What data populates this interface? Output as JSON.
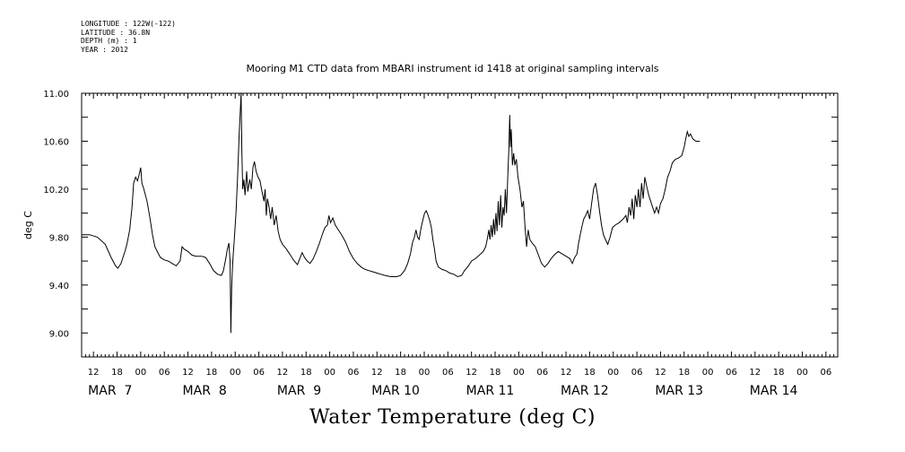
{
  "meta": {
    "longitude": "LONGITUDE : 122W(-122)",
    "latitude": "LATITUDE : 36.8N",
    "depth": "DEPTH (m) : 1",
    "year": "YEAR : 2012"
  },
  "chart_data": {
    "type": "line",
    "title": "Mooring M1 CTD data from MBARI instrument id 1418 at original sampling intervals",
    "main_title": "Water Temperature (deg C)",
    "ylabel": "deg C",
    "xlabel": "",
    "ylim": [
      8.8,
      11.0
    ],
    "y_ticks": [
      9.0,
      9.4,
      9.8,
      10.2,
      10.6,
      11.0
    ],
    "y_tick_labels": [
      "9.00",
      "9.40",
      "9.80",
      "10.20",
      "10.60",
      "11.00"
    ],
    "x_unit": "hours since MAR 7 00:00 (2012)",
    "xlim": [
      -15,
      177
    ],
    "hour_tick_labels": [
      {
        "x": -12,
        "label": "12"
      },
      {
        "x": -6,
        "label": "18"
      },
      {
        "x": 0,
        "label": "00"
      },
      {
        "x": 6,
        "label": "06"
      },
      {
        "x": 12,
        "label": "12"
      },
      {
        "x": 18,
        "label": "18"
      },
      {
        "x": 24,
        "label": "00"
      },
      {
        "x": 30,
        "label": "06"
      },
      {
        "x": 36,
        "label": "12"
      },
      {
        "x": 42,
        "label": "18"
      },
      {
        "x": 48,
        "label": "00"
      },
      {
        "x": 54,
        "label": "06"
      },
      {
        "x": 60,
        "label": "12"
      },
      {
        "x": 66,
        "label": "18"
      },
      {
        "x": 72,
        "label": "00"
      },
      {
        "x": 78,
        "label": "06"
      },
      {
        "x": 84,
        "label": "12"
      },
      {
        "x": 90,
        "label": "18"
      },
      {
        "x": 96,
        "label": "00"
      },
      {
        "x": 102,
        "label": "06"
      },
      {
        "x": 108,
        "label": "12"
      },
      {
        "x": 114,
        "label": "18"
      },
      {
        "x": 120,
        "label": "00"
      },
      {
        "x": 126,
        "label": "06"
      },
      {
        "x": 132,
        "label": "12"
      },
      {
        "x": 138,
        "label": "18"
      },
      {
        "x": 144,
        "label": "00"
      },
      {
        "x": 150,
        "label": "06"
      },
      {
        "x": 156,
        "label": "12"
      },
      {
        "x": 162,
        "label": "18"
      },
      {
        "x": 168,
        "label": "00"
      },
      {
        "x": 174,
        "label": "06"
      }
    ],
    "date_labels": [
      {
        "x": -12,
        "label": "MAR  7"
      },
      {
        "x": 12,
        "label": "MAR  8"
      },
      {
        "x": 36,
        "label": "MAR  9"
      },
      {
        "x": 60,
        "label": "MAR 10"
      },
      {
        "x": 84,
        "label": "MAR 11"
      },
      {
        "x": 108,
        "label": "MAR 12"
      },
      {
        "x": 132,
        "label": "MAR 13"
      },
      {
        "x": 156,
        "label": "MAR 14"
      }
    ],
    "series": [
      {
        "color": "#000000",
        "points": [
          [
            -15.0,
            9.82
          ],
          [
            -13.0,
            9.82
          ],
          [
            -11.0,
            9.8
          ],
          [
            -9.0,
            9.74
          ],
          [
            -7.5,
            9.63
          ],
          [
            -6.4,
            9.56
          ],
          [
            -5.8,
            9.54
          ],
          [
            -5.0,
            9.58
          ],
          [
            -4.0,
            9.68
          ],
          [
            -3.5,
            9.74
          ],
          [
            -2.8,
            9.86
          ],
          [
            -2.2,
            10.05
          ],
          [
            -1.8,
            10.25
          ],
          [
            -1.3,
            10.3
          ],
          [
            -0.8,
            10.27
          ],
          [
            -0.4,
            10.32
          ],
          [
            0.0,
            10.38
          ],
          [
            0.3,
            10.25
          ],
          [
            0.8,
            10.2
          ],
          [
            1.6,
            10.1
          ],
          [
            2.4,
            9.95
          ],
          [
            3.0,
            9.82
          ],
          [
            3.6,
            9.72
          ],
          [
            4.2,
            9.68
          ],
          [
            5.0,
            9.63
          ],
          [
            6.0,
            9.61
          ],
          [
            7.0,
            9.6
          ],
          [
            8.0,
            9.58
          ],
          [
            9.0,
            9.56
          ],
          [
            10.0,
            9.6
          ],
          [
            10.5,
            9.72
          ],
          [
            11.0,
            9.7
          ],
          [
            12.0,
            9.68
          ],
          [
            13.0,
            9.65
          ],
          [
            14.0,
            9.64
          ],
          [
            15.5,
            9.64
          ],
          [
            16.5,
            9.63
          ],
          [
            17.5,
            9.58
          ],
          [
            18.5,
            9.52
          ],
          [
            19.5,
            9.49
          ],
          [
            20.5,
            9.48
          ],
          [
            21.0,
            9.52
          ],
          [
            21.6,
            9.62
          ],
          [
            22.0,
            9.7
          ],
          [
            22.4,
            9.75
          ],
          [
            22.7,
            9.6
          ],
          [
            22.9,
            9.0
          ],
          [
            23.1,
            9.38
          ],
          [
            23.3,
            9.55
          ],
          [
            23.5,
            9.65
          ],
          [
            23.8,
            9.8
          ],
          [
            24.2,
            10.0
          ],
          [
            24.6,
            10.3
          ],
          [
            25.0,
            10.65
          ],
          [
            25.3,
            10.85
          ],
          [
            25.5,
            11.0
          ],
          [
            25.7,
            10.5
          ],
          [
            25.9,
            10.2
          ],
          [
            26.2,
            10.28
          ],
          [
            26.5,
            10.15
          ],
          [
            26.9,
            10.35
          ],
          [
            27.2,
            10.18
          ],
          [
            27.7,
            10.28
          ],
          [
            28.1,
            10.2
          ],
          [
            28.5,
            10.38
          ],
          [
            28.9,
            10.43
          ],
          [
            29.3,
            10.35
          ],
          [
            29.8,
            10.3
          ],
          [
            30.3,
            10.27
          ],
          [
            30.8,
            10.18
          ],
          [
            31.3,
            10.1
          ],
          [
            31.6,
            10.2
          ],
          [
            31.9,
            9.98
          ],
          [
            32.2,
            10.12
          ],
          [
            32.6,
            10.05
          ],
          [
            33.0,
            9.95
          ],
          [
            33.4,
            10.05
          ],
          [
            33.9,
            9.9
          ],
          [
            34.4,
            9.98
          ],
          [
            34.9,
            9.85
          ],
          [
            35.4,
            9.78
          ],
          [
            36.0,
            9.74
          ],
          [
            37.0,
            9.7
          ],
          [
            38.0,
            9.65
          ],
          [
            39.0,
            9.6
          ],
          [
            39.8,
            9.57
          ],
          [
            40.4,
            9.62
          ],
          [
            41.0,
            9.67
          ],
          [
            41.6,
            9.63
          ],
          [
            42.3,
            9.6
          ],
          [
            43.0,
            9.58
          ],
          [
            43.8,
            9.62
          ],
          [
            44.6,
            9.68
          ],
          [
            45.4,
            9.75
          ],
          [
            46.2,
            9.83
          ],
          [
            46.8,
            9.88
          ],
          [
            47.4,
            9.9
          ],
          [
            47.8,
            9.98
          ],
          [
            48.2,
            9.92
          ],
          [
            48.8,
            9.96
          ],
          [
            49.4,
            9.9
          ],
          [
            50.0,
            9.87
          ],
          [
            51.0,
            9.82
          ],
          [
            52.0,
            9.76
          ],
          [
            53.0,
            9.68
          ],
          [
            54.0,
            9.62
          ],
          [
            55.0,
            9.58
          ],
          [
            56.0,
            9.55
          ],
          [
            57.0,
            9.53
          ],
          [
            58.0,
            9.52
          ],
          [
            59.0,
            9.51
          ],
          [
            60.0,
            9.5
          ],
          [
            61.0,
            9.49
          ],
          [
            62.0,
            9.48
          ],
          [
            63.5,
            9.47
          ],
          [
            65.0,
            9.47
          ],
          [
            66.0,
            9.48
          ],
          [
            67.0,
            9.52
          ],
          [
            67.8,
            9.58
          ],
          [
            68.5,
            9.66
          ],
          [
            69.0,
            9.75
          ],
          [
            69.5,
            9.8
          ],
          [
            69.9,
            9.86
          ],
          [
            70.3,
            9.8
          ],
          [
            70.7,
            9.78
          ],
          [
            71.2,
            9.88
          ],
          [
            71.7,
            9.95
          ],
          [
            72.1,
            10.0
          ],
          [
            72.5,
            10.02
          ],
          [
            72.9,
            9.99
          ],
          [
            73.4,
            9.94
          ],
          [
            73.8,
            9.88
          ],
          [
            74.2,
            9.78
          ],
          [
            74.6,
            9.7
          ],
          [
            75.0,
            9.6
          ],
          [
            75.6,
            9.55
          ],
          [
            76.5,
            9.53
          ],
          [
            77.5,
            9.52
          ],
          [
            78.5,
            9.5
          ],
          [
            79.5,
            9.49
          ],
          [
            80.5,
            9.47
          ],
          [
            81.5,
            9.48
          ],
          [
            82.2,
            9.52
          ],
          [
            83.0,
            9.55
          ],
          [
            84.0,
            9.6
          ],
          [
            85.0,
            9.62
          ],
          [
            86.0,
            9.65
          ],
          [
            87.0,
            9.68
          ],
          [
            87.6,
            9.72
          ],
          [
            88.0,
            9.78
          ],
          [
            88.4,
            9.86
          ],
          [
            88.7,
            9.78
          ],
          [
            89.0,
            9.9
          ],
          [
            89.3,
            9.8
          ],
          [
            89.6,
            9.95
          ],
          [
            89.9,
            9.82
          ],
          [
            90.2,
            10.0
          ],
          [
            90.5,
            9.85
          ],
          [
            90.8,
            10.1
          ],
          [
            91.1,
            9.9
          ],
          [
            91.4,
            10.15
          ],
          [
            91.7,
            9.88
          ],
          [
            92.0,
            10.05
          ],
          [
            92.3,
            9.98
          ],
          [
            92.6,
            10.2
          ],
          [
            92.9,
            10.0
          ],
          [
            93.2,
            10.3
          ],
          [
            93.5,
            10.55
          ],
          [
            93.7,
            10.82
          ],
          [
            93.9,
            10.55
          ],
          [
            94.1,
            10.7
          ],
          [
            94.4,
            10.4
          ],
          [
            94.7,
            10.5
          ],
          [
            95.0,
            10.4
          ],
          [
            95.4,
            10.45
          ],
          [
            95.8,
            10.3
          ],
          [
            96.3,
            10.2
          ],
          [
            96.8,
            10.05
          ],
          [
            97.2,
            10.1
          ],
          [
            97.6,
            9.88
          ],
          [
            98.0,
            9.72
          ],
          [
            98.4,
            9.86
          ],
          [
            98.8,
            9.78
          ],
          [
            99.4,
            9.75
          ],
          [
            100.2,
            9.72
          ],
          [
            101.0,
            9.65
          ],
          [
            101.8,
            9.58
          ],
          [
            102.6,
            9.55
          ],
          [
            103.4,
            9.58
          ],
          [
            104.2,
            9.62
          ],
          [
            105.0,
            9.65
          ],
          [
            106.0,
            9.68
          ],
          [
            107.0,
            9.66
          ],
          [
            108.0,
            9.64
          ],
          [
            109.0,
            9.62
          ],
          [
            109.6,
            9.58
          ],
          [
            110.2,
            9.63
          ],
          [
            110.8,
            9.66
          ],
          [
            111.2,
            9.75
          ],
          [
            111.6,
            9.82
          ],
          [
            112.0,
            9.88
          ],
          [
            112.5,
            9.95
          ],
          [
            113.0,
            9.98
          ],
          [
            113.5,
            10.02
          ],
          [
            114.0,
            9.95
          ],
          [
            114.5,
            10.08
          ],
          [
            115.0,
            10.2
          ],
          [
            115.5,
            10.25
          ],
          [
            116.0,
            10.15
          ],
          [
            116.5,
            10.02
          ],
          [
            117.0,
            9.9
          ],
          [
            117.5,
            9.82
          ],
          [
            118.0,
            9.78
          ],
          [
            118.6,
            9.74
          ],
          [
            119.2,
            9.8
          ],
          [
            119.8,
            9.88
          ],
          [
            120.5,
            9.9
          ],
          [
            121.5,
            9.92
          ],
          [
            122.5,
            9.95
          ],
          [
            123.2,
            9.98
          ],
          [
            123.6,
            9.92
          ],
          [
            124.0,
            10.05
          ],
          [
            124.4,
            9.98
          ],
          [
            124.8,
            10.12
          ],
          [
            125.2,
            9.95
          ],
          [
            125.6,
            10.15
          ],
          [
            126.0,
            10.05
          ],
          [
            126.4,
            10.2
          ],
          [
            126.8,
            10.05
          ],
          [
            127.2,
            10.25
          ],
          [
            127.6,
            10.12
          ],
          [
            128.0,
            10.3
          ],
          [
            128.5,
            10.22
          ],
          [
            129.0,
            10.15
          ],
          [
            129.5,
            10.1
          ],
          [
            130.0,
            10.05
          ],
          [
            130.5,
            10.0
          ],
          [
            131.0,
            10.05
          ],
          [
            131.5,
            10.0
          ],
          [
            132.0,
            10.08
          ],
          [
            132.6,
            10.12
          ],
          [
            133.2,
            10.2
          ],
          [
            133.8,
            10.3
          ],
          [
            134.4,
            10.35
          ],
          [
            135.0,
            10.42
          ],
          [
            135.8,
            10.45
          ],
          [
            136.6,
            10.46
          ],
          [
            137.4,
            10.48
          ],
          [
            138.0,
            10.55
          ],
          [
            138.4,
            10.62
          ],
          [
            138.8,
            10.68
          ],
          [
            139.2,
            10.64
          ],
          [
            139.6,
            10.66
          ],
          [
            140.2,
            10.62
          ],
          [
            141.0,
            10.6
          ],
          [
            142.0,
            10.6
          ]
        ]
      }
    ]
  }
}
